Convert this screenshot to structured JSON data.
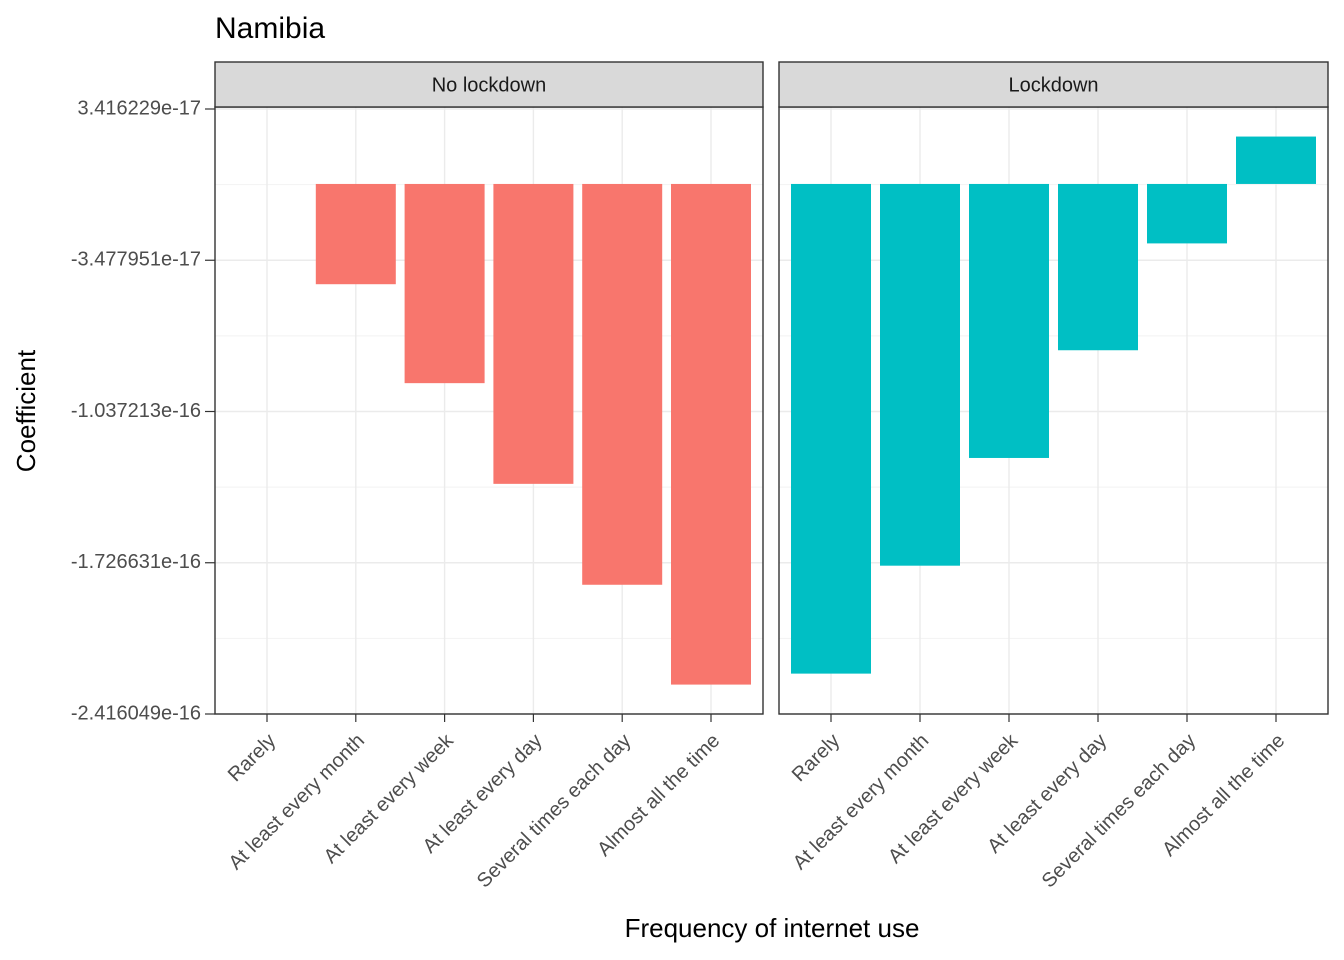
{
  "chart_data": {
    "type": "bar",
    "title": "Namibia",
    "x_label": "Frequency of internet use",
    "y_label": "Coefficient",
    "categories": [
      "Rarely",
      "At least every month",
      "At least every week",
      "At least every day",
      "Several times each day",
      "Almost all the time"
    ],
    "series": [
      {
        "name": "No lockdown",
        "color": "#f8766d",
        "values": [
          0,
          -4.57e-17,
          -9.08e-17,
          -1.367e-16,
          -1.827e-16,
          -2.282e-16
        ]
      },
      {
        "name": "Lockdown",
        "color": "#00bfc4",
        "values": [
          -2.232e-16,
          -1.74e-16,
          -1.249e-16,
          -7.58e-17,
          -2.71e-17,
          2.16e-17
        ]
      }
    ],
    "ylim": [
      -2.416049e-16,
      3.416229e-17
    ],
    "yticks": [
      3.416229e-17,
      -3.477951e-17,
      -1.037213e-16,
      -1.726631e-16,
      -2.416049e-16
    ],
    "grid": true
  }
}
